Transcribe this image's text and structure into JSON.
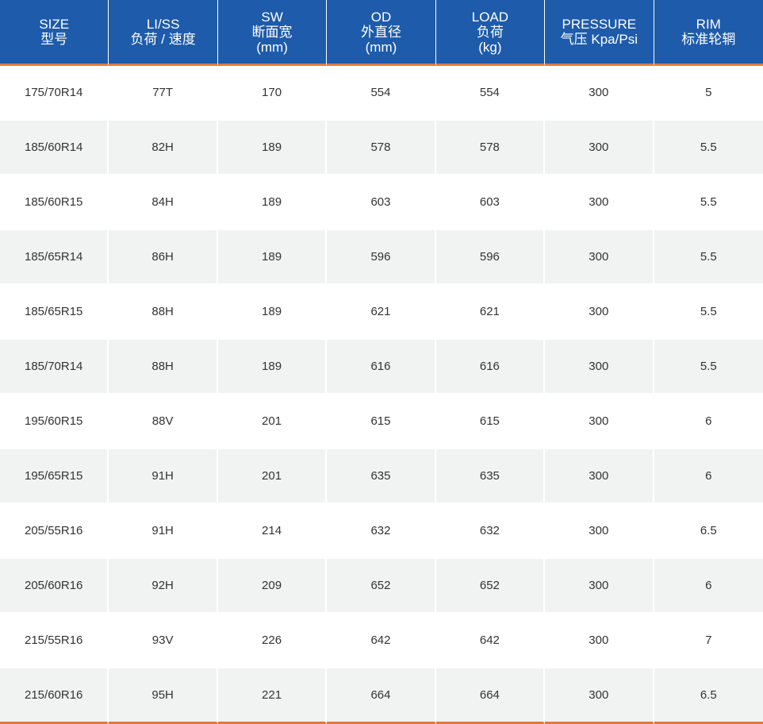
{
  "colors": {
    "header_bg": "#1e5bab",
    "header_text": "#ffffff",
    "accent_line": "#e07a3b",
    "row_alt_bg": "#f1f3f3"
  },
  "header": [
    [
      "SIZE",
      "型号"
    ],
    [
      "LI/SS",
      "负荷 / 速度"
    ],
    [
      "SW",
      "断面宽",
      "(mm)"
    ],
    [
      "OD",
      "外直径",
      "(mm)"
    ],
    [
      "LOAD",
      "负荷",
      "(kg)"
    ],
    [
      "PRESSURE",
      "气压 Kpa/Psi"
    ],
    [
      "RIM",
      "标准轮辋"
    ]
  ],
  "rows": [
    [
      "175/70R14",
      "77T",
      "170",
      "554",
      "554",
      "300",
      "5"
    ],
    [
      "185/60R14",
      "82H",
      "189",
      "578",
      "578",
      "300",
      "5.5"
    ],
    [
      "185/60R15",
      "84H",
      "189",
      "603",
      "603",
      "300",
      "5.5"
    ],
    [
      "185/65R14",
      "86H",
      "189",
      "596",
      "596",
      "300",
      "5.5"
    ],
    [
      "185/65R15",
      "88H",
      "189",
      "621",
      "621",
      "300",
      "5.5"
    ],
    [
      "185/70R14",
      "88H",
      "189",
      "616",
      "616",
      "300",
      "5.5"
    ],
    [
      "195/60R15",
      "88V",
      "201",
      "615",
      "615",
      "300",
      "6"
    ],
    [
      "195/65R15",
      "91H",
      "201",
      "635",
      "635",
      "300",
      "6"
    ],
    [
      "205/55R16",
      "91H",
      "214",
      "632",
      "632",
      "300",
      "6.5"
    ],
    [
      "205/60R16",
      "92H",
      "209",
      "652",
      "652",
      "300",
      "6"
    ],
    [
      "215/55R16",
      "93V",
      "226",
      "642",
      "642",
      "300",
      "7"
    ],
    [
      "215/60R16",
      "95H",
      "221",
      "664",
      "664",
      "300",
      "6.5"
    ]
  ]
}
